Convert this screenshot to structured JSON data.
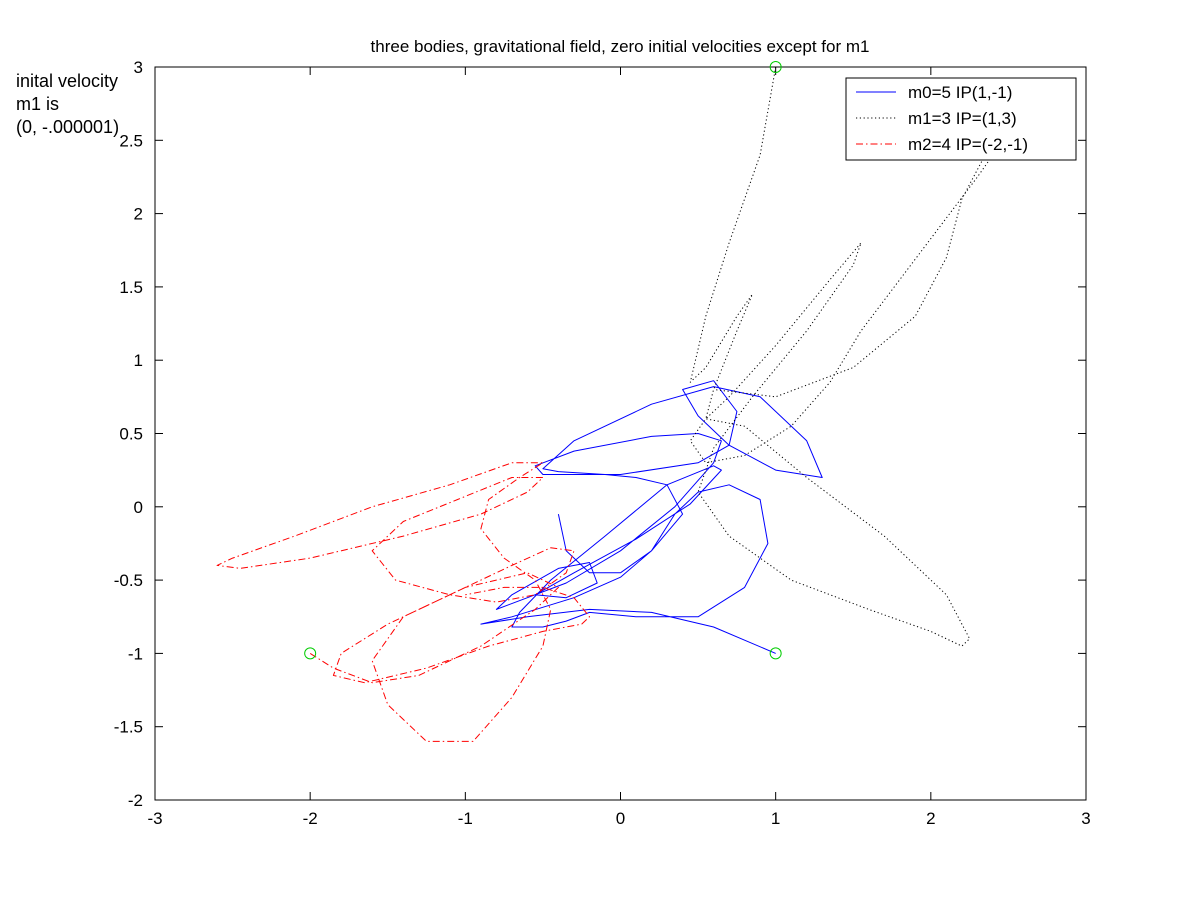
{
  "chart_data": {
    "type": "line",
    "title": "three bodies, gravitational field, zero initial velocities except for m1",
    "xlabel": "",
    "ylabel": "",
    "xlim": [
      -3,
      3
    ],
    "ylim": [
      -2,
      3
    ],
    "xticks": [
      "-3",
      "-2",
      "-1",
      "0",
      "1",
      "2",
      "3"
    ],
    "yticks": [
      "-2",
      "-1.5",
      "-1",
      "-0.5",
      "0",
      "0.5",
      "1",
      "1.5",
      "2",
      "2.5",
      "3"
    ],
    "grid": false,
    "legend_position": "top-right",
    "annotation": [
      "inital velocity",
      "m1 is",
      "(0, -.000001)"
    ],
    "start_markers": [
      {
        "x": 1,
        "y": -1
      },
      {
        "x": 1,
        "y": 3
      },
      {
        "x": -2,
        "y": -1
      }
    ],
    "series": [
      {
        "name": "m0=5 IP(1,-1)",
        "color": "#0000ff",
        "style": "solid",
        "x": [
          1.0,
          0.6,
          0.2,
          -0.2,
          -0.6,
          -0.9,
          -0.7,
          -0.3,
          0.0,
          0.2,
          0.4,
          0.3,
          0.1,
          -0.1,
          -0.4,
          -0.5,
          -0.3,
          0.2,
          0.6,
          0.9,
          1.2,
          1.3,
          1.0,
          0.7,
          0.5,
          0.4,
          0.6,
          0.75,
          0.7,
          0.5,
          0.0,
          -0.5,
          -0.55,
          -0.3,
          0.2,
          0.5,
          0.65,
          0.6,
          0.35,
          0.0,
          -0.35,
          -0.6,
          -0.8,
          -0.7,
          -0.4,
          -0.2,
          -0.15,
          -0.35,
          -0.55,
          -0.3,
          0.1,
          0.45,
          0.65,
          0.6,
          0.3,
          -0.1,
          -0.45,
          -0.65,
          -0.7,
          -0.5,
          -0.35,
          -0.2,
          0.1,
          0.5,
          0.8,
          0.95,
          0.9,
          0.7,
          0.5,
          0.35,
          0.2,
          0.0,
          -0.2,
          -0.35,
          -0.4
        ],
        "y": [
          -1.0,
          -0.82,
          -0.72,
          -0.7,
          -0.75,
          -0.8,
          -0.75,
          -0.62,
          -0.48,
          -0.3,
          -0.05,
          0.15,
          0.2,
          0.22,
          0.24,
          0.26,
          0.45,
          0.7,
          0.82,
          0.75,
          0.45,
          0.2,
          0.25,
          0.42,
          0.62,
          0.8,
          0.86,
          0.65,
          0.42,
          0.3,
          0.22,
          0.22,
          0.28,
          0.38,
          0.48,
          0.5,
          0.45,
          0.3,
          0.0,
          -0.3,
          -0.52,
          -0.62,
          -0.7,
          -0.6,
          -0.42,
          -0.38,
          -0.52,
          -0.62,
          -0.6,
          -0.45,
          -0.22,
          0.02,
          0.25,
          0.28,
          0.15,
          -0.2,
          -0.5,
          -0.72,
          -0.82,
          -0.82,
          -0.78,
          -0.72,
          -0.75,
          -0.75,
          -0.55,
          -0.25,
          0.05,
          0.15,
          0.1,
          -0.05,
          -0.3,
          -0.45,
          -0.45,
          -0.3,
          -0.05
        ]
      },
      {
        "name": "m1=3 IP=(1,3)",
        "color": "#000000",
        "style": "dotted",
        "x": [
          1.0,
          0.9,
          0.7,
          0.55,
          0.45,
          0.55,
          0.75,
          0.85,
          0.75,
          0.6,
          0.55,
          0.7,
          1.0,
          1.35,
          1.55,
          1.5,
          1.2,
          0.85,
          0.6,
          0.5,
          0.7,
          1.1,
          1.6,
          2.0,
          2.2,
          2.25,
          2.1,
          1.7,
          1.2,
          0.8,
          0.55,
          0.45,
          0.55,
          0.8,
          1.1,
          1.35,
          1.55,
          1.8,
          2.05,
          2.3,
          2.5,
          2.6,
          2.65,
          2.6,
          2.4,
          2.2,
          2.1,
          1.9,
          1.5,
          1.0,
          0.6
        ],
        "y": [
          3.0,
          2.4,
          1.8,
          1.3,
          0.85,
          0.95,
          1.3,
          1.45,
          1.2,
          0.8,
          0.6,
          0.75,
          1.1,
          1.55,
          1.8,
          1.65,
          1.2,
          0.75,
          0.4,
          0.1,
          -0.2,
          -0.5,
          -0.7,
          -0.85,
          -0.95,
          -0.9,
          -0.6,
          -0.2,
          0.2,
          0.55,
          0.6,
          0.45,
          0.3,
          0.35,
          0.55,
          0.85,
          1.2,
          1.55,
          1.9,
          2.25,
          2.55,
          2.75,
          2.8,
          2.75,
          2.5,
          2.1,
          1.7,
          1.3,
          0.95,
          0.75,
          0.8
        ]
      },
      {
        "name": "m2=4 IP=(-2,-1)",
        "color": "#ff0000",
        "style": "dashdot",
        "x": [
          -2.0,
          -1.85,
          -1.6,
          -1.3,
          -0.9,
          -0.55,
          -0.4,
          -0.6,
          -1.0,
          -1.4,
          -1.6,
          -1.5,
          -1.25,
          -0.95,
          -0.7,
          -0.5,
          -0.45,
          -0.55,
          -0.75,
          -0.9,
          -0.85,
          -0.65,
          -0.5,
          -0.7,
          -1.1,
          -1.6,
          -2.1,
          -2.5,
          -2.6,
          -2.45,
          -2.0,
          -1.4,
          -0.9,
          -0.6,
          -0.5,
          -0.7,
          -1.05,
          -1.4,
          -1.6,
          -1.45,
          -1.1,
          -0.8,
          -0.55,
          -0.35,
          -0.3,
          -0.45,
          -0.7,
          -1.1,
          -1.5,
          -1.8,
          -1.85,
          -1.65,
          -1.25,
          -0.85,
          -0.5,
          -0.25,
          -0.2,
          -0.3,
          -0.5,
          -0.75,
          -1.0
        ],
        "y": [
          -1.0,
          -1.1,
          -1.2,
          -1.15,
          -0.95,
          -0.7,
          -0.55,
          -0.45,
          -0.55,
          -0.75,
          -1.05,
          -1.35,
          -1.6,
          -1.6,
          -1.3,
          -0.95,
          -0.7,
          -0.5,
          -0.35,
          -0.15,
          0.05,
          0.2,
          0.3,
          0.3,
          0.15,
          0.0,
          -0.2,
          -0.35,
          -0.4,
          -0.42,
          -0.35,
          -0.2,
          -0.05,
          0.1,
          0.2,
          0.2,
          0.05,
          -0.1,
          -0.3,
          -0.5,
          -0.6,
          -0.65,
          -0.6,
          -0.45,
          -0.3,
          -0.28,
          -0.4,
          -0.6,
          -0.8,
          -1.0,
          -1.15,
          -1.2,
          -1.1,
          -0.95,
          -0.85,
          -0.8,
          -0.75,
          -0.62,
          -0.55,
          -0.55,
          -0.6
        ]
      }
    ]
  }
}
